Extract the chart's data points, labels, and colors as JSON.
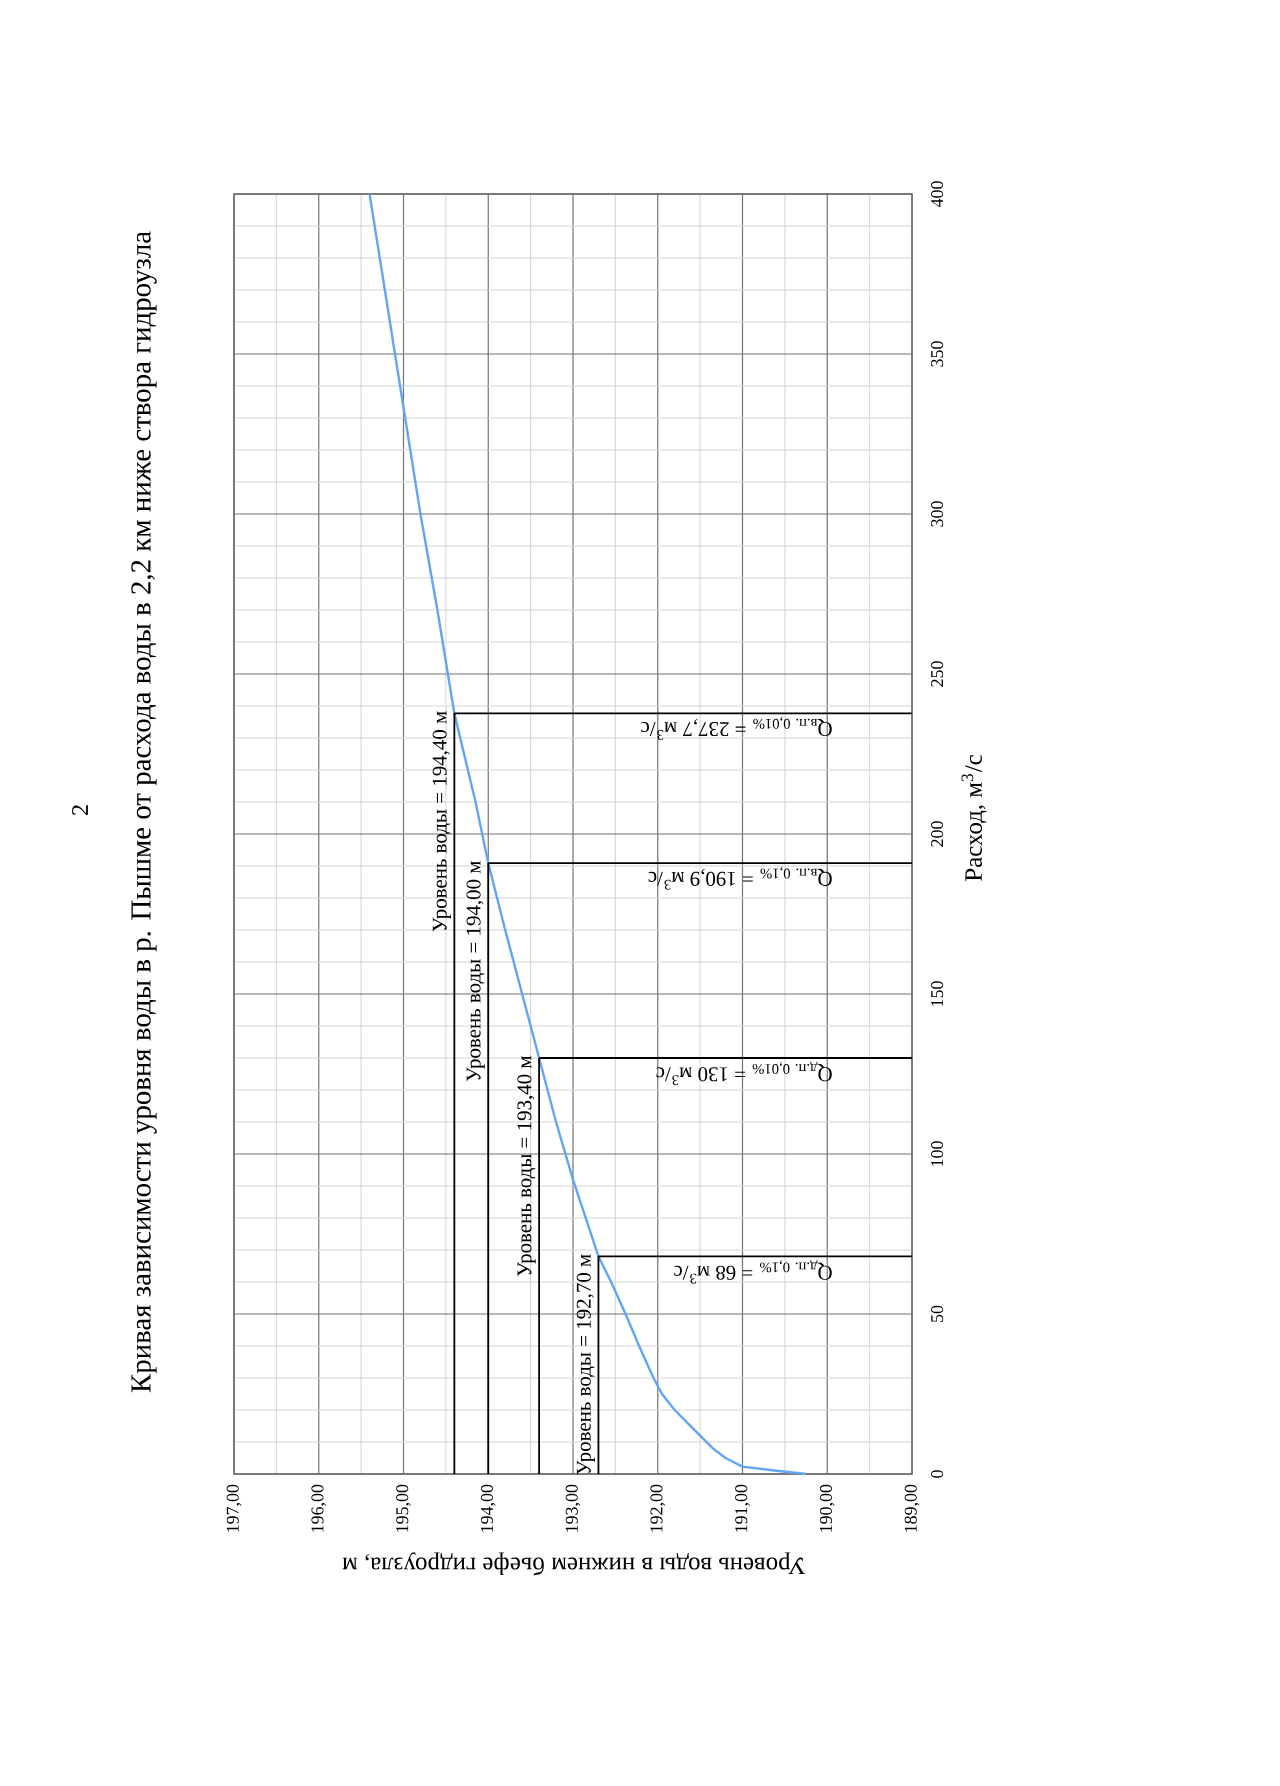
{
  "chart_data": {
    "type": "line",
    "title": "Кривая зависимости уровня воды в р. Пышме от расхода воды в 2,2 км ниже створа гидроузла",
    "xlabel": "Уровень воды в нижнем бьефе гидроузла, м",
    "ylabel": "Расход, м$^{3}$/с",
    "annotations": [
      "2"
    ],
    "x": [
      190.25,
      190.6,
      191.0,
      191.2,
      191.35,
      191.5,
      191.65,
      191.8,
      191.95,
      192.05,
      192.22,
      192.38,
      192.55,
      192.7,
      192.85,
      193.0,
      193.2,
      193.4,
      193.6,
      193.8,
      194.0,
      194.15,
      194.4,
      194.6,
      194.8,
      195.1,
      195.4
    ],
    "series": [
      {
        "color": "#62a6f2",
        "values": [
          0,
          1,
          2.3,
          5,
          8,
          12,
          16,
          20,
          25,
          30,
          40,
          50,
          60,
          68,
          80,
          92,
          110,
          130,
          150,
          170,
          190.9,
          210,
          237.7,
          270,
          300,
          350,
          400
        ]
      }
    ],
    "xlim": [
      197,
      189
    ],
    "ylim": [
      0,
      400
    ],
    "xticks": [
      {
        "value": 189,
        "label": "189,00"
      },
      {
        "value": 189.5,
        "label": null
      },
      {
        "value": 190,
        "label": "190,00"
      },
      {
        "value": 190.5,
        "label": null
      },
      {
        "value": 191,
        "label": "191,00"
      },
      {
        "value": 191.5,
        "label": null
      },
      {
        "value": 192,
        "label": "192,00"
      },
      {
        "value": 192.5,
        "label": null
      },
      {
        "value": 193,
        "label": "193,00"
      },
      {
        "value": 193.5,
        "label": null
      },
      {
        "value": 194,
        "label": "194,00"
      },
      {
        "value": 194.5,
        "label": null
      },
      {
        "value": 195,
        "label": "195,00"
      },
      {
        "value": 195.5,
        "label": null
      },
      {
        "value": 196,
        "label": "196,00"
      },
      {
        "value": 196.5,
        "label": null
      },
      {
        "value": 197,
        "label": "197,00"
      }
    ],
    "yticks": [
      0,
      {
        "value": 10,
        "label": null
      },
      {
        "value": 20,
        "label": null
      },
      {
        "value": 30,
        "label": null
      },
      {
        "value": 40,
        "label": null
      },
      50,
      {
        "value": 60,
        "label": null
      },
      {
        "value": 70,
        "label": null
      },
      {
        "value": 80,
        "label": null
      },
      {
        "value": 90,
        "label": null
      },
      100,
      {
        "value": 110,
        "label": null
      },
      {
        "value": 120,
        "label": null
      },
      {
        "value": 130,
        "label": null
      },
      {
        "value": 140,
        "label": null
      },
      150,
      {
        "value": 160,
        "label": null
      },
      {
        "value": 170,
        "label": null
      },
      {
        "value": 180,
        "label": null
      },
      {
        "value": 190,
        "label": null
      },
      200,
      {
        "value": 210,
        "label": null
      },
      {
        "value": 220,
        "label": null
      },
      {
        "value": 230,
        "label": null
      },
      {
        "value": 240,
        "label": null
      },
      250,
      {
        "value": 260,
        "label": null
      },
      {
        "value": 270,
        "label": null
      },
      {
        "value": 280,
        "label": null
      },
      {
        "value": 290,
        "label": null
      },
      300,
      {
        "value": 310,
        "label": null
      },
      {
        "value": 320,
        "label": null
      },
      {
        "value": 330,
        "label": null
      },
      {
        "value": 340,
        "label": null
      },
      350,
      {
        "value": 360,
        "label": null
      },
      {
        "value": 370,
        "label": null
      },
      {
        "value": 380,
        "label": null
      },
      {
        "value": 390,
        "label": null
      },
      400
    ],
    "grid": true,
    "line_style": "solid",
    "ref_lines": [
      {
        "axis": "x",
        "value": 192.7,
        "label": "Уровень воды = 192,70 м",
        "color": "#000000"
      },
      {
        "axis": "x",
        "value": 193.4,
        "label": "Уровень воды = 193,40 м",
        "color": "#000000"
      },
      {
        "axis": "x",
        "value": 194.0,
        "label": "Уровень воды = 194,00 м",
        "color": "#000000"
      },
      {
        "axis": "x",
        "value": 194.4,
        "label": "Уровень воды = 194,40 м",
        "color": "#000000"
      },
      {
        "axis": "y",
        "value": 68,
        "label": "Q$_{д.п. 0,1%}$ = 68 м$^{3}$/с",
        "color": "#000000"
      },
      {
        "axis": "y",
        "value": 130,
        "label": "Q$_{д.п. 0,01%}$ = 130 м$^{3}$/с",
        "color": "#000000"
      },
      {
        "axis": "y",
        "value": 190.9,
        "label": "Q$_{в.п. 0,1%}$ = 190,9 м$^{3}$/с",
        "color": "#000000"
      },
      {
        "axis": "y",
        "value": 237.7,
        "label": "Q$_{в.п. 0,01%}$ = 237,7 м$^{3}$/с",
        "color": "#000000"
      }
    ]
  }
}
